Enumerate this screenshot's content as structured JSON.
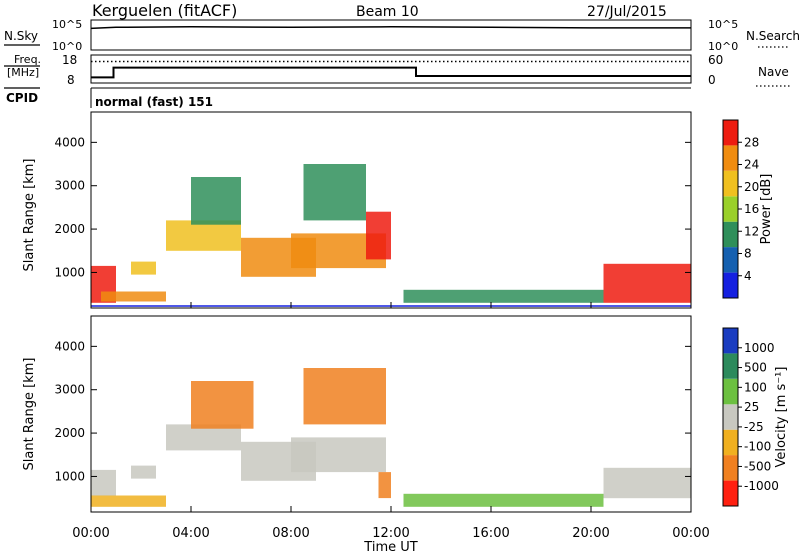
{
  "header": {
    "station": "Kerguelen (fitACF)",
    "beam": "Beam 10",
    "date": "27/Jul/2015"
  },
  "strips": {
    "nsky_label": "N.Sky",
    "nsearch_label": "N.Search",
    "log_ticks_left": [
      "10^5",
      "10^0"
    ],
    "log_ticks_right": [
      "10^5",
      "10^0"
    ],
    "freq_label_line1": "Freq.",
    "freq_label_line2": "[MHz]",
    "freq_ticks": [
      "18",
      "8"
    ],
    "nave_label": "Nave",
    "nave_ticks": [
      "60",
      "0"
    ],
    "cpid_label": "CPID",
    "cpid_text": "normal (fast) 151"
  },
  "axes": {
    "ylabel": "Slant Range [km]",
    "xlabel": "Time UT",
    "y_ticks": [
      "1000",
      "2000",
      "3000",
      "4000"
    ],
    "x_ticks": [
      "00:00",
      "04:00",
      "08:00",
      "12:00",
      "16:00",
      "20:00",
      "00:00"
    ]
  },
  "colorbars": {
    "power": {
      "label": "Power [dB]",
      "ticks": [
        "4",
        "8",
        "12",
        "16",
        "20",
        "24",
        "28"
      ],
      "colors": [
        "#1520e0",
        "#1560b0",
        "#2f8f5a",
        "#9ad02a",
        "#f0c020",
        "#f08c10",
        "#ee1c10"
      ]
    },
    "velocity": {
      "label": "Velocity [m s⁻¹]",
      "ticks": [
        "1000",
        "500",
        "100",
        "25",
        "-25",
        "-100",
        "-500",
        "-1000"
      ],
      "colors": [
        "#1a3cc0",
        "#2c8a5c",
        "#6cc040",
        "#c8c8c0",
        "#f0b020",
        "#f08020",
        "#ff2010"
      ]
    }
  },
  "chart_data": [
    {
      "type": "line",
      "title": "N.Sky / N.Search",
      "x": [
        0,
        1,
        4,
        8,
        12,
        16,
        20,
        24
      ],
      "series": [
        {
          "name": "N.Sky",
          "values": [
            4.0,
            4.2,
            4.3,
            4.2,
            4.3,
            4.2,
            4.1,
            4.1
          ]
        },
        {
          "name": "N.Search",
          "values": [
            4.0,
            4.2,
            4.3,
            4.2,
            4.3,
            4.2,
            4.1,
            4.1
          ]
        }
      ],
      "ylim": [
        0,
        5
      ]
    },
    {
      "type": "line",
      "title": "Freq. [MHz] / Nave",
      "x": [
        0,
        0.9,
        0.9,
        13,
        13,
        24
      ],
      "series": [
        {
          "name": "Freq.",
          "values": [
            10,
            10,
            13.5,
            13.5,
            10.5,
            10.5
          ]
        },
        {
          "name": "Nave",
          "values": [
            46,
            46,
            46,
            46,
            46,
            46
          ]
        }
      ],
      "ylim": [
        8,
        18
      ]
    },
    {
      "type": "heatmap",
      "title": "Power [dB]",
      "xlim": [
        0,
        24
      ],
      "ylim": [
        180,
        4700
      ],
      "regions": [
        {
          "t": [
            0,
            1.0
          ],
          "r": [
            300,
            1150
          ],
          "level": 28
        },
        {
          "t": [
            0.4,
            3.0
          ],
          "r": [
            330,
            560
          ],
          "level": 22
        },
        {
          "t": [
            1.6,
            2.6
          ],
          "r": [
            950,
            1250
          ],
          "level": 18
        },
        {
          "t": [
            3.0,
            6.0
          ],
          "r": [
            1500,
            2200
          ],
          "level": 16
        },
        {
          "t": [
            4.0,
            6.0
          ],
          "r": [
            2100,
            3200
          ],
          "level": 10
        },
        {
          "t": [
            6.0,
            9.0
          ],
          "r": [
            900,
            1800
          ],
          "level": 22
        },
        {
          "t": [
            8.0,
            11.8
          ],
          "r": [
            1100,
            1900
          ],
          "level": 20
        },
        {
          "t": [
            8.5,
            11.0
          ],
          "r": [
            2200,
            3500
          ],
          "level": 8
        },
        {
          "t": [
            11.0,
            12.0
          ],
          "r": [
            1300,
            2400
          ],
          "level": 24
        },
        {
          "t": [
            12.5,
            20.5
          ],
          "r": [
            300,
            600
          ],
          "level": 8
        },
        {
          "t": [
            20.5,
            24
          ],
          "r": [
            300,
            1200
          ],
          "level": 28
        }
      ]
    },
    {
      "type": "heatmap",
      "title": "Velocity [m s⁻¹]",
      "xlim": [
        0,
        24
      ],
      "ylim": [
        180,
        4700
      ],
      "regions": [
        {
          "t": [
            0,
            1.0
          ],
          "r": [
            550,
            1150
          ],
          "level": 0
        },
        {
          "t": [
            0,
            3.0
          ],
          "r": [
            300,
            560
          ],
          "level": -50
        },
        {
          "t": [
            1.6,
            2.6
          ],
          "r": [
            950,
            1250
          ],
          "level": 0
        },
        {
          "t": [
            3.0,
            6.0
          ],
          "r": [
            1600,
            2200
          ],
          "level": 0
        },
        {
          "t": [
            4.0,
            6.5
          ],
          "r": [
            2100,
            3200
          ],
          "level": -300
        },
        {
          "t": [
            6.0,
            9.0
          ],
          "r": [
            900,
            1800
          ],
          "level": 0
        },
        {
          "t": [
            8.0,
            11.8
          ],
          "r": [
            1100,
            1900
          ],
          "level": 0
        },
        {
          "t": [
            8.5,
            11.8
          ],
          "r": [
            2200,
            3500
          ],
          "level": -500
        },
        {
          "t": [
            11.5,
            12.0
          ],
          "r": [
            500,
            1100
          ],
          "level": -500
        },
        {
          "t": [
            12.5,
            20.5
          ],
          "r": [
            300,
            600
          ],
          "level": 50
        },
        {
          "t": [
            20.5,
            24
          ],
          "r": [
            500,
            1200
          ],
          "level": 0
        }
      ]
    }
  ]
}
